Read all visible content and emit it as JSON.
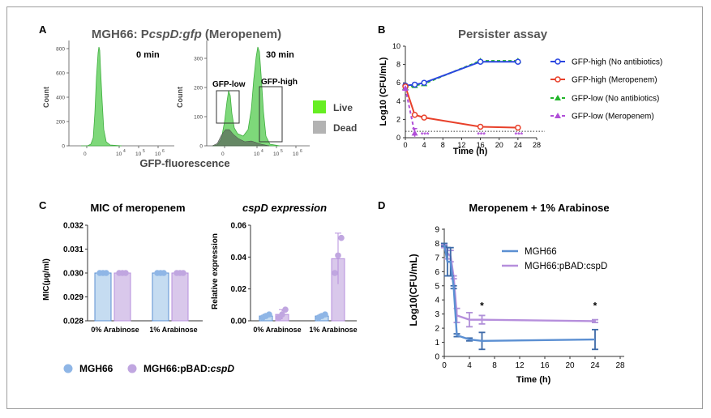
{
  "colors": {
    "hist_green": "#7ed87a",
    "hist_green_stroke": "#3fae3f",
    "dead_gray": "#5e6d5e",
    "live_swatch": "#66ee22",
    "dead_swatch": "#b3b3b3",
    "gfp_high_blue": "#2a46e0",
    "gfp_high_mero_red": "#e8402a",
    "gfp_low_green": "#22b52a",
    "gfp_low_mero_purple": "#b04fd8",
    "mgh66_blue": "#5b8fd2",
    "pbad_purple": "#b68fdc",
    "bar_blue_fill": "#c5dcf1",
    "bar_purple_fill": "#d9c8eb"
  },
  "panel_labels": {
    "a": "A",
    "b": "B",
    "c": "C",
    "d": "D"
  },
  "panel_a": {
    "title_prefix": "MGH66: P",
    "title_gene": "cspD:gfp",
    "title_suffix": " (Meropenem)",
    "xlabel": "GFP-fluorescence",
    "ylabel_left": "Count",
    "ylabel_right": "Count",
    "left": {
      "label": "0 min",
      "ymax": 800,
      "yticks": [
        "0",
        "200",
        "400",
        "600",
        "800"
      ],
      "xticks": [
        "0",
        "10",
        "10",
        "10"
      ],
      "xtick_exps": [
        "",
        "4",
        "5",
        "6"
      ]
    },
    "right": {
      "label": "30 min",
      "ymax": 300,
      "yticks": [
        "0",
        "100",
        "200",
        "300"
      ],
      "xticks": [
        "0",
        "10",
        "10",
        "10"
      ],
      "xtick_exps": [
        "",
        "4",
        "5",
        "6"
      ],
      "gate_low": "GFP-low",
      "gate_high": "GFP-high"
    },
    "legend": [
      {
        "label": "Live"
      },
      {
        "label": "Dead"
      }
    ]
  },
  "panel_c": {
    "mic": {
      "title": "MIC of meropenem",
      "ylabel": "MIC(μg/ml)",
      "ylim": [
        0.028,
        0.032
      ],
      "yticks": [
        "0.028",
        "0.029",
        "0.030",
        "0.031",
        "0.032"
      ],
      "categories": [
        "0% Arabinose",
        "1% Arabinose"
      ]
    },
    "expr": {
      "title": "cspD expression",
      "ylabel": "Relative expression",
      "ylim": [
        0,
        0.06
      ],
      "yticks": [
        "0.00",
        "0.02",
        "0.04",
        "0.06"
      ],
      "categories": [
        "0% Arabinose",
        "1% Arabinose"
      ]
    },
    "legend": {
      "mgh66": "MGH66",
      "pbad_prefix": "MGH66:pBAD:",
      "pbad_gene": "cspD"
    }
  },
  "chart_data": [
    {
      "id": "persister-assay",
      "type": "line",
      "title": "Persister assay",
      "xlabel": "Time (h)",
      "ylabel": "Log10 (CFU/mL)",
      "xlim": [
        0,
        28
      ],
      "ylim": [
        0,
        10
      ],
      "xticks": [
        "0",
        "4",
        "8",
        "12",
        "16",
        "20",
        "24",
        "28"
      ],
      "yticks": [
        "0",
        "2",
        "4",
        "6",
        "8",
        "10"
      ],
      "detection_limit": 0.7,
      "series": [
        {
          "name": "GFP-high (No antibiotics)",
          "x": [
            0,
            2,
            4,
            16,
            24
          ],
          "y": [
            5.7,
            5.8,
            6.0,
            8.3,
            8.3
          ]
        },
        {
          "name": "GFP-high (Meropenem)",
          "x": [
            0,
            2,
            4,
            16,
            24
          ],
          "y": [
            5.6,
            2.5,
            2.2,
            1.2,
            1.1
          ]
        },
        {
          "name": "GFP-low (No antibiotics)",
          "x": [
            0,
            2,
            4,
            16,
            24
          ],
          "y": [
            5.5,
            5.7,
            5.9,
            8.4,
            8.4
          ]
        },
        {
          "name": "GFP-low (Meropenem)",
          "x": [
            0,
            2
          ],
          "y": [
            5.4,
            0.5
          ]
        }
      ],
      "annotations": [
        {
          "x": 4,
          "text": "***"
        },
        {
          "x": 16,
          "text": "***"
        },
        {
          "x": 24,
          "text": "***"
        }
      ]
    },
    {
      "id": "mic-of-meropenem",
      "type": "bar",
      "title": "MIC of meropenem",
      "categories": [
        "0% Arabinose",
        "1% Arabinose"
      ],
      "ylim": [
        0.028,
        0.032
      ],
      "series": [
        {
          "name": "MGH66",
          "values": [
            0.03,
            0.03
          ],
          "points": [
            [
              0.03,
              0.03,
              0.03
            ],
            [
              0.03,
              0.03,
              0.03
            ]
          ]
        },
        {
          "name": "MGH66:pBAD:cspD",
          "values": [
            0.03,
            0.03
          ],
          "points": [
            [
              0.03,
              0.03,
              0.03
            ],
            [
              0.03,
              0.03,
              0.03
            ]
          ]
        }
      ]
    },
    {
      "id": "cspd-expression",
      "type": "bar",
      "title": "cspD expression",
      "categories": [
        "0% Arabinose",
        "1% Arabinose"
      ],
      "ylim": [
        0,
        0.06
      ],
      "series": [
        {
          "name": "MGH66",
          "values": [
            0.003,
            0.003
          ],
          "err": [
            0.001,
            0.001
          ],
          "points": [
            [
              0.002,
              0.003,
              0.004
            ],
            [
              0.002,
              0.003,
              0.004
            ]
          ]
        },
        {
          "name": "MGH66:pBAD:cspD",
          "values": [
            0.004,
            0.039
          ],
          "err": [
            0.003,
            0.016
          ],
          "points": [
            [
              0.002,
              0.004,
              0.007
            ],
            [
              0.03,
              0.041,
              0.052
            ]
          ]
        }
      ]
    },
    {
      "id": "meropenem-arabinose",
      "type": "line",
      "title": "Meropenem + 1% Arabinose",
      "xlabel": "Time (h)",
      "ylabel": "Log10(CFU/mL)",
      "xlim": [
        0,
        28
      ],
      "ylim": [
        0,
        9
      ],
      "xticks": [
        "0",
        "4",
        "8",
        "12",
        "16",
        "20",
        "24",
        "28"
      ],
      "yticks": [
        "0",
        "1",
        "2",
        "3",
        "4",
        "5",
        "6",
        "7",
        "8",
        "9"
      ],
      "series": [
        {
          "name": "MGH66",
          "x": [
            0,
            0.5,
            1,
            1.5,
            2,
            4,
            6,
            24
          ],
          "y": [
            7.9,
            6.7,
            6.7,
            4.9,
            1.5,
            1.2,
            1.1,
            1.2
          ],
          "err": [
            0.1,
            1.0,
            1.0,
            0.1,
            0.1,
            0.1,
            0.6,
            0.7
          ]
        },
        {
          "name": "MGH66:pBAD:cspD",
          "x": [
            0,
            0.5,
            1,
            1.5,
            2,
            4,
            6,
            24
          ],
          "y": [
            7.8,
            7.3,
            7.1,
            5.6,
            2.9,
            2.6,
            2.6,
            2.5
          ],
          "err": [
            0.1,
            0.4,
            0.4,
            0.1,
            0.5,
            0.5,
            0.3,
            0.1
          ]
        }
      ],
      "annotations": [
        {
          "x": 6,
          "text": "*"
        },
        {
          "x": 24,
          "text": "*"
        }
      ]
    }
  ]
}
